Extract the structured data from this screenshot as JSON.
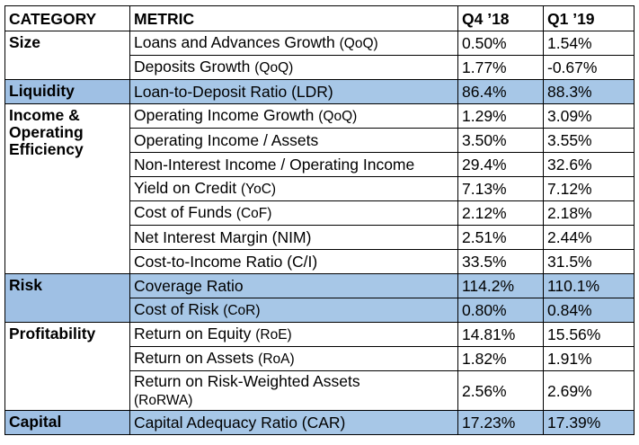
{
  "header": {
    "category": "CATEGORY",
    "metric": "METRIC",
    "q4": "Q4 ’18",
    "q1": "Q1 ’19"
  },
  "groups": [
    {
      "category": "Size",
      "rows": [
        {
          "metric": "Loans and Advances Growth",
          "abbr": "(QoQ)",
          "q4": "0.50%",
          "q1": "1.54%"
        },
        {
          "metric": "Deposits Growth",
          "abbr": "(QoQ)",
          "q4": "1.77%",
          "q1": "-0.67%"
        }
      ]
    },
    {
      "category": "Liquidity",
      "rows": [
        {
          "metric": "Loan-to-Deposit Ratio (LDR)",
          "abbr": "",
          "q4": "86.4%",
          "q1": "88.3%"
        }
      ]
    },
    {
      "category": "Income & Operating Efficiency",
      "rows": [
        {
          "metric": "Operating Income Growth",
          "abbr": "(QoQ)",
          "q4": "1.29%",
          "q1": "3.09%"
        },
        {
          "metric": "Operating Income / Assets",
          "abbr": "",
          "q4": "3.50%",
          "q1": "3.55%"
        },
        {
          "metric": "Non-Interest Income / Operating Income",
          "abbr": "",
          "q4": "29.4%",
          "q1": "32.6%"
        },
        {
          "metric": "Yield on Credit",
          "abbr": "(YoC)",
          "q4": "7.13%",
          "q1": "7.12%"
        },
        {
          "metric": "Cost of Funds",
          "abbr": "(CoF)",
          "q4": "2.12%",
          "q1": "2.18%"
        },
        {
          "metric": "Net Interest Margin (NIM)",
          "abbr": "",
          "q4": "2.51%",
          "q1": "2.44%"
        },
        {
          "metric": "Cost-to-Income Ratio (C/I)",
          "abbr": "",
          "q4": "33.5%",
          "q1": "31.5%"
        }
      ]
    },
    {
      "category": "Risk",
      "rows": [
        {
          "metric": "Coverage Ratio",
          "abbr": "",
          "q4": "114.2%",
          "q1": "110.1%"
        },
        {
          "metric": "Cost of Risk",
          "abbr": "(CoR)",
          "q4": "0.80%",
          "q1": "0.84%"
        }
      ]
    },
    {
      "category": "Profitability",
      "rows": [
        {
          "metric": "Return on Equity",
          "abbr": "(RoE)",
          "q4": "14.81%",
          "q1": "15.56%"
        },
        {
          "metric": "Return on Assets",
          "abbr": "(RoA)",
          "q4": "1.82%",
          "q1": "1.91%"
        },
        {
          "metric": "Return on Risk-Weighted Assets",
          "abbr": "(RoRWA)",
          "q4": "2.56%",
          "q1": "2.69%"
        }
      ]
    },
    {
      "category": "Capital",
      "rows": [
        {
          "metric": "Capital Adequacy Ratio (CAR)",
          "abbr": "",
          "q4": "17.23%",
          "q1": "17.39%"
        }
      ]
    }
  ],
  "colors": {
    "highlight": "#a7c7e7",
    "border": "#000000",
    "background": "#ffffff"
  }
}
